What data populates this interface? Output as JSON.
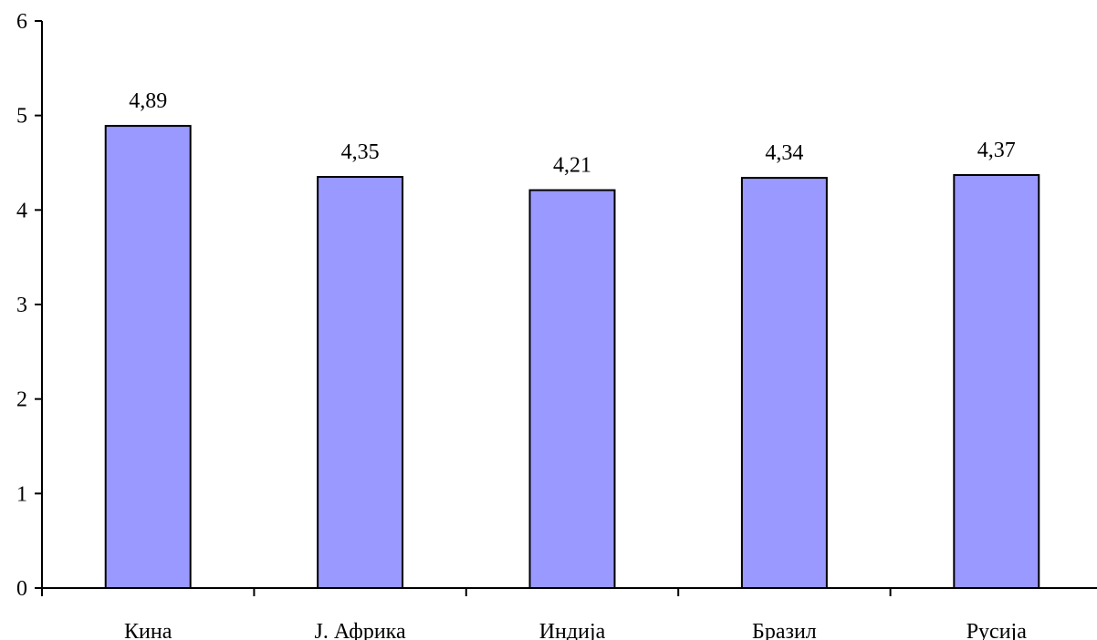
{
  "chart_data": {
    "type": "bar",
    "categories": [
      "Кина",
      "Ј. Африка",
      "Индија",
      "Бразил",
      "Русија"
    ],
    "values": [
      4.89,
      4.35,
      4.21,
      4.34,
      4.37
    ],
    "data_labels": [
      "4,89",
      "4,35",
      "4,21",
      "4,34",
      "4,37"
    ],
    "y_ticks": [
      0,
      1,
      2,
      3,
      4,
      5,
      6
    ],
    "y_tick_labels": [
      "0",
      "1",
      "2",
      "3",
      "4",
      "5",
      "6"
    ],
    "ylim": [
      0,
      6
    ],
    "title": "",
    "xlabel": "",
    "ylabel": "",
    "grid": false,
    "legend": "none",
    "bar_color": "#9999ff",
    "bar_edge_color": "#000000"
  }
}
